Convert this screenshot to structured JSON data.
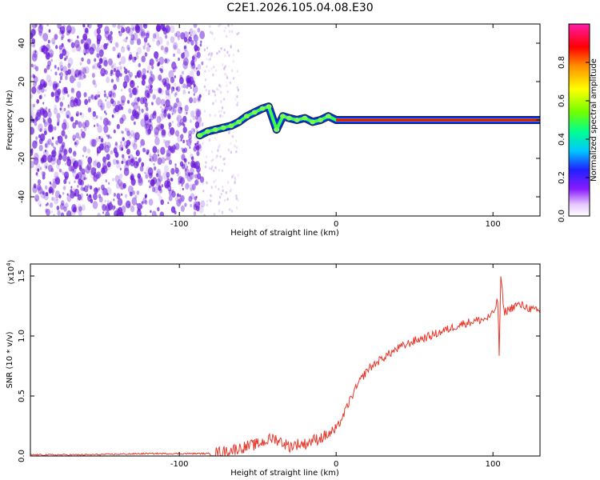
{
  "figure_title": "C2E1.2026.105.04.08.E30",
  "colors": {
    "snr_line": "#e8372a",
    "ridge_core": "#ff0000",
    "ridge_mid": "#3cff3c",
    "ridge_edge": "#0030ff",
    "noise": "#6a1bd8"
  },
  "chart_data": [
    {
      "type": "heatmap",
      "xlabel": "Height of straight line (km)",
      "ylabel": "Frequency (Hz)",
      "xlim": [
        -195,
        130
      ],
      "ylim": [
        -50,
        50
      ],
      "xticks": [
        -100,
        0,
        100
      ],
      "xtick_labels": [
        "-100",
        "0",
        "100"
      ],
      "yticks": [
        -40,
        -20,
        0,
        20,
        40
      ],
      "ytick_labels": [
        "-40",
        "-20",
        "0",
        "20",
        "40"
      ],
      "colorbar": {
        "label": "Normalized spectral amplitude",
        "range": [
          0,
          1
        ],
        "ticks": [
          0.0,
          0.2,
          0.4,
          0.6,
          0.8
        ],
        "tick_labels": [
          "0.0",
          "0.2",
          "0.4",
          "0.6",
          "0.8"
        ]
      },
      "noise_region_km": [
        -195,
        -85
      ],
      "ridge": {
        "x": [
          -87,
          -82,
          -77,
          -72,
          -67,
          -62,
          -57,
          -52,
          -47,
          -43,
          -38,
          -34,
          -30,
          -25,
          -20,
          -15,
          -10,
          -5,
          0,
          50,
          100,
          130
        ],
        "y": [
          -8,
          -6,
          -5,
          -4,
          -3,
          -1,
          2,
          4,
          6,
          7,
          -5,
          2,
          1,
          0,
          1,
          -1,
          0,
          2,
          0,
          0,
          0,
          0
        ]
      }
    },
    {
      "type": "line",
      "xlabel": "Height of straight line (km)",
      "ylabel": "SNR (10 * v/v)",
      "scale_label": "(x10",
      "scale_exp": "4",
      "scale_close": ")",
      "xlim": [
        -195,
        130
      ],
      "ylim": [
        0,
        1.6
      ],
      "xticks": [
        -100,
        0,
        100
      ],
      "xtick_labels": [
        "-100",
        "0",
        "100"
      ],
      "yticks": [
        0.0,
        0.5,
        1.0,
        1.5
      ],
      "ytick_labels": [
        "0.0",
        "0.5",
        "1.0",
        "1.5"
      ],
      "series": [
        {
          "name": "SNR",
          "x": [
            -195,
            -160,
            -120,
            -80,
            -70,
            -60,
            -50,
            -40,
            -35,
            -30,
            -25,
            -20,
            -15,
            -10,
            -5,
            0,
            5,
            10,
            15,
            20,
            30,
            40,
            50,
            60,
            70,
            80,
            90,
            95,
            100,
            103,
            104,
            105,
            107,
            110,
            115,
            120,
            125,
            130
          ],
          "y": [
            0.01,
            0.01,
            0.02,
            0.02,
            0.04,
            0.07,
            0.1,
            0.15,
            0.12,
            0.08,
            0.1,
            0.1,
            0.13,
            0.15,
            0.18,
            0.22,
            0.35,
            0.5,
            0.62,
            0.72,
            0.82,
            0.9,
            0.96,
            1.0,
            1.05,
            1.1,
            1.13,
            1.14,
            1.18,
            1.3,
            0.85,
            1.5,
            1.2,
            1.22,
            1.26,
            1.25,
            1.22,
            1.2
          ]
        }
      ]
    }
  ]
}
